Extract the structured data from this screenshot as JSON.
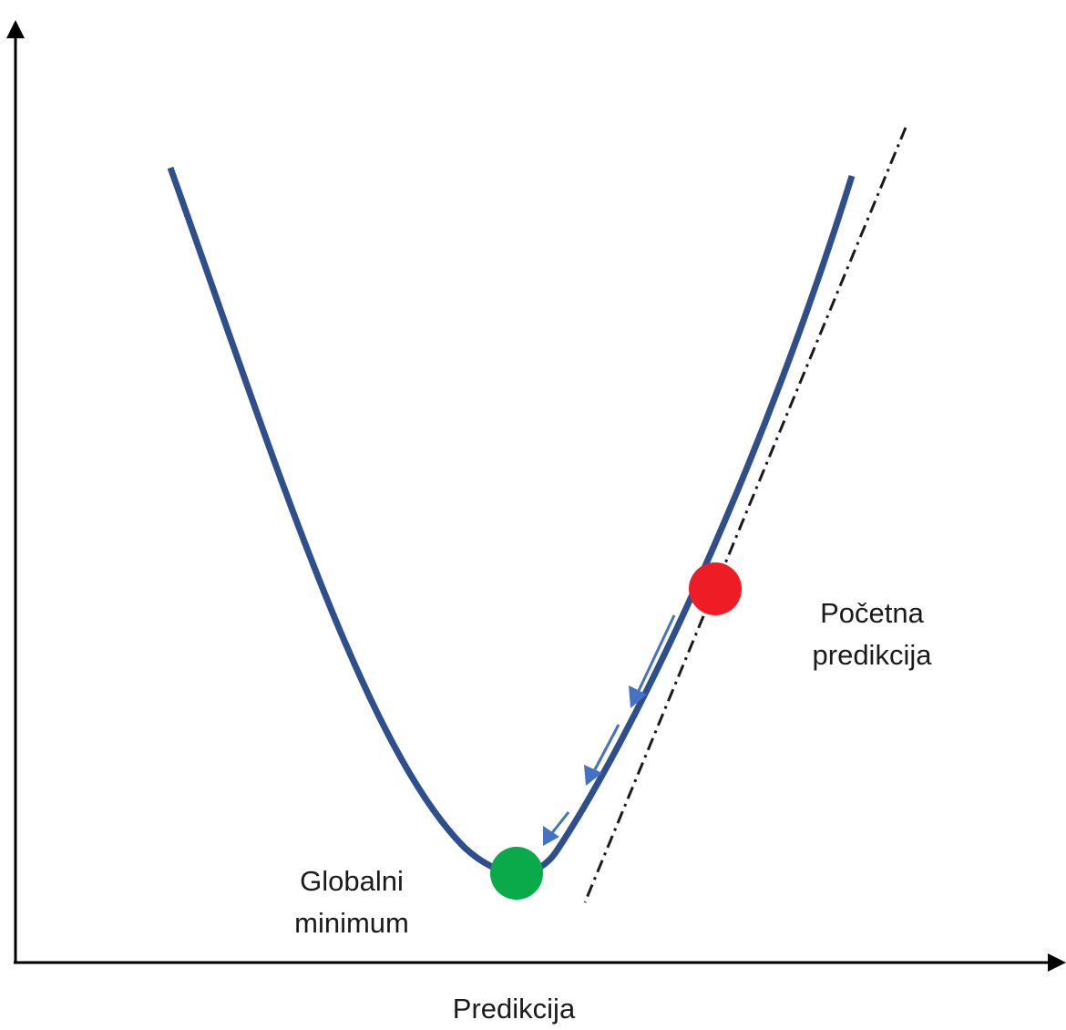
{
  "diagram": {
    "x_axis_label": "Predikcija",
    "y_axis_label": "",
    "start_point_label": [
      "Početna",
      "predikcija"
    ],
    "minimum_label": [
      "Globalni",
      "minimum"
    ],
    "colors": {
      "curve": "#2e4f8c",
      "start_point": "#ee1c24",
      "minimum_point": "#0aaa4a",
      "step_arrows": "#4472c4",
      "tangent": "#1a1a1a",
      "axes": "#000000"
    },
    "step_arrow_count": 3
  }
}
